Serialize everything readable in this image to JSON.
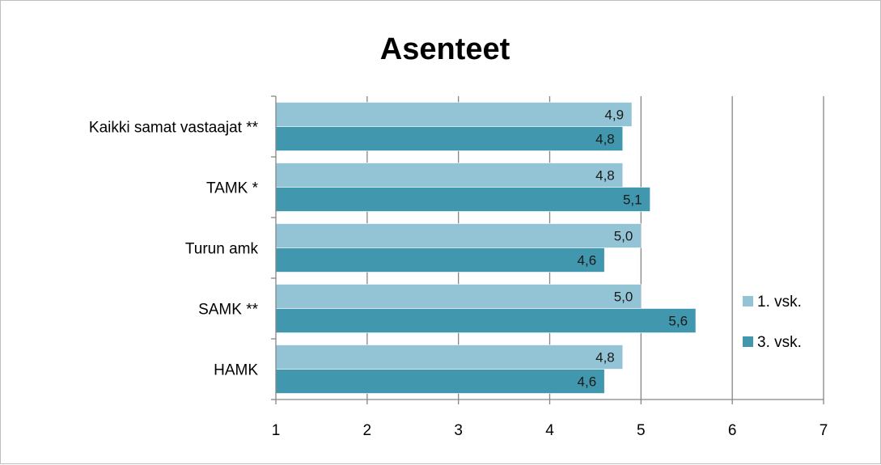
{
  "chart_data": {
    "type": "bar",
    "orientation": "horizontal",
    "title": "Asenteet",
    "categories": [
      "Kaikki samat vastaajat **",
      "TAMK *",
      "Turun amk",
      "SAMK **",
      "HAMK"
    ],
    "series": [
      {
        "name": "1. vsk.",
        "values": [
          4.9,
          4.8,
          5.0,
          5.0,
          4.8
        ],
        "labels": [
          "4,9",
          "4,8",
          "5,0",
          "5,0",
          "4,8"
        ],
        "color": "#93c4d6"
      },
      {
        "name": "3. vsk.",
        "values": [
          4.8,
          5.1,
          4.6,
          5.6,
          4.6
        ],
        "labels": [
          "4,8",
          "5,1",
          "4,6",
          "5,6",
          "4,6"
        ],
        "color": "#4197ae"
      }
    ],
    "xlim": [
      1,
      7
    ],
    "xticks": [
      "1",
      "2",
      "3",
      "4",
      "5",
      "6",
      "7"
    ],
    "grid": true,
    "legend": "right"
  }
}
